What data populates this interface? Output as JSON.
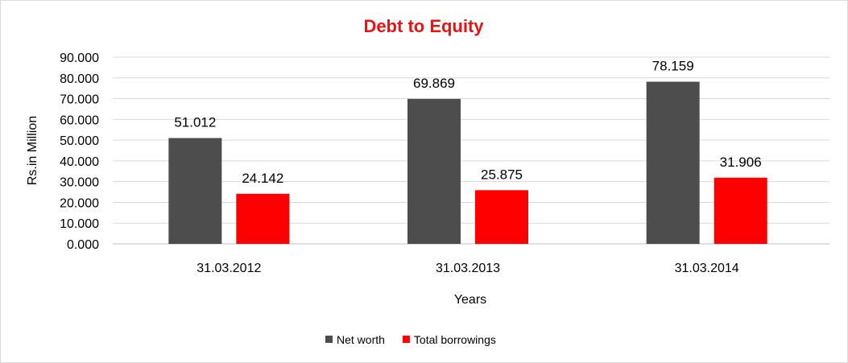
{
  "chart_data": {
    "type": "bar",
    "title": "Debt to Equity",
    "title_color": "#ee1111",
    "xlabel": "Years",
    "ylabel": "Rs.in Million",
    "categories": [
      "31.03.2012",
      "31.03.2013",
      "31.03.2014"
    ],
    "series": [
      {
        "name": "Net worth",
        "color": "#4d4d4d",
        "values": [
          51.012,
          69.869,
          78.159
        ],
        "labels": [
          "51.012",
          "69.869",
          "78.159"
        ]
      },
      {
        "name": "Total borrowings",
        "color": "#ff0000",
        "values": [
          24.142,
          25.875,
          31.906
        ],
        "labels": [
          "24.142",
          "25.875",
          "31.906"
        ]
      }
    ],
    "ylim": [
      0,
      90
    ],
    "yticks": [
      "0.000",
      "10.000",
      "20.000",
      "30.000",
      "40.000",
      "50.000",
      "60.000",
      "70.000",
      "80.000",
      "90.000"
    ],
    "grid": true,
    "legend": "bottom-center"
  }
}
